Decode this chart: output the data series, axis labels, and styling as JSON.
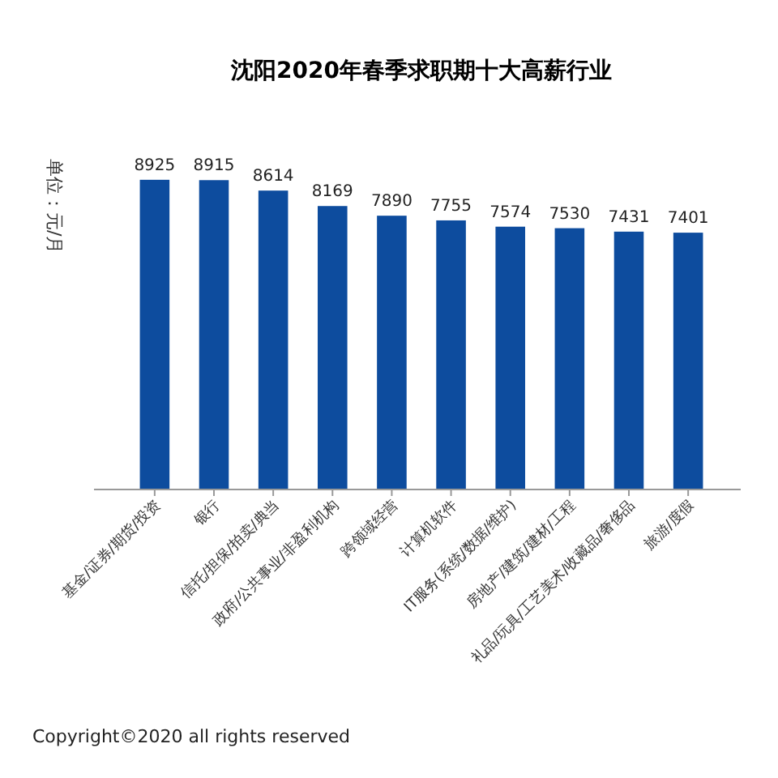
{
  "chart_data": {
    "type": "bar",
    "title": "沈阳2020年春季求职期十大高薪行业",
    "ylabel": "单位：元/月",
    "categories": [
      "基金/证券/期货/投资",
      "银行",
      "信托/担保/拍卖/典当",
      "政府/公共事业/非盈利机构",
      "跨领域经营",
      "计算机软件",
      "IT服务(系统/数据/维护)",
      "房地产/建筑/建材/工程",
      "礼品/玩具/工艺美术/收藏品/奢侈品",
      "旅游/度假"
    ],
    "values": [
      8925,
      8915,
      8614,
      8169,
      7890,
      7755,
      7574,
      7530,
      7431,
      7401
    ],
    "color": "#0d4c9e",
    "data_labels": true,
    "annotations": [
      "Copyright©2020 all rights reserved"
    ]
  }
}
